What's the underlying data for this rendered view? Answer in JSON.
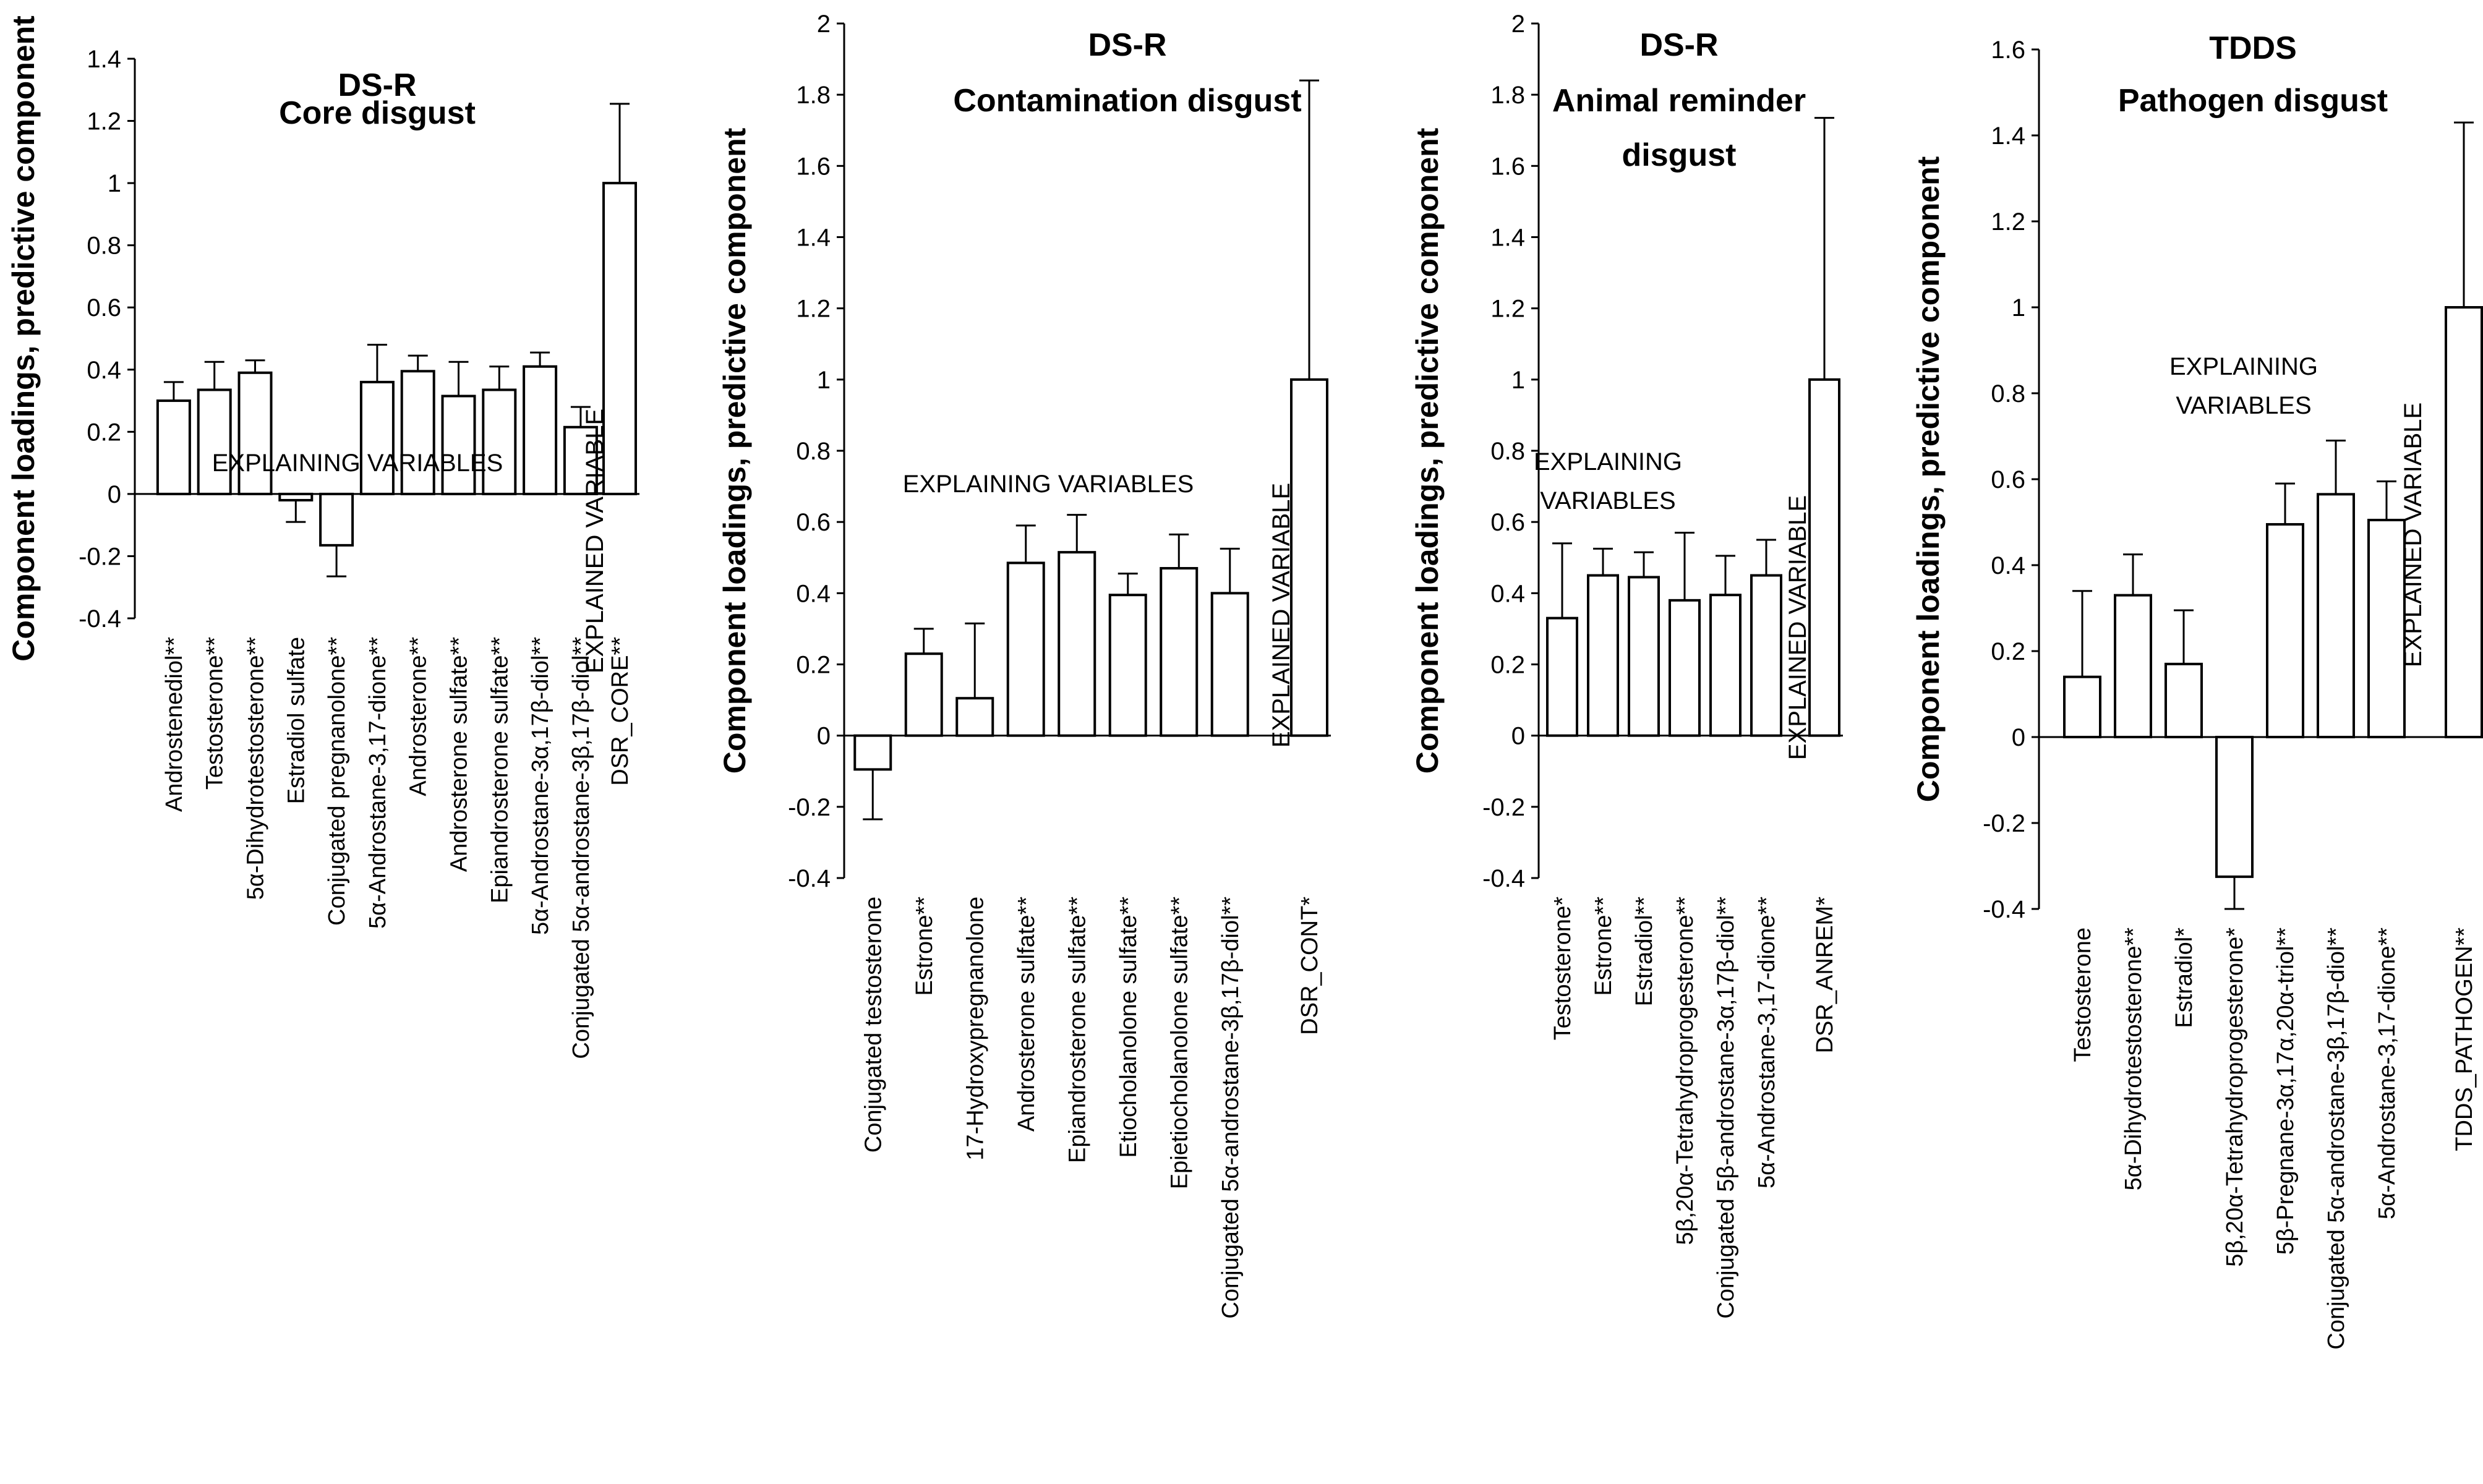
{
  "chart_data": [
    {
      "type": "bar",
      "title": [
        "DS-R",
        "Core disgust"
      ],
      "ylabel": "Component loadings, predictive component",
      "ylim": [
        -0.4,
        1.4
      ],
      "yticks": [
        -0.4,
        -0.2,
        0,
        0.2,
        0.4,
        0.6,
        0.8,
        1,
        1.2,
        1.4
      ],
      "ytick_labels": [
        "-0.4",
        "-0.2",
        "0",
        "0.2",
        "0.4",
        "0.6",
        "0.8",
        "1",
        "1.2",
        "1.4"
      ],
      "categories": [
        "Androstenediol**",
        "Testosterone**",
        "5α-Dihydrotestosterone**",
        "Estradiol sulfate",
        "Conjugated pregnanolone**",
        "5α-Androstane-3,17-dione**",
        "Androsterone**",
        "Androsterone sulfate**",
        "Epiandrosterone  sulfate**",
        "5α-Androstane-3α,17β-diol**",
        "Conjugated 5α-androstane-3β,17β-diol**",
        "DSR_CORE**"
      ],
      "values": [
        0.3,
        0.335,
        0.39,
        -0.02,
        -0.165,
        0.36,
        0.395,
        0.315,
        0.335,
        0.41,
        0.215,
        1.0
      ],
      "errors": [
        0.06,
        0.09,
        0.04,
        0.07,
        0.1,
        0.12,
        0.05,
        0.11,
        0.075,
        0.045,
        0.065,
        0.255
      ],
      "annotations": [
        {
          "text": [
            "EXPLAINING VARIABLES"
          ],
          "orientation": "horizontal"
        },
        {
          "text": [
            "EXPLAINED VARIABLE"
          ],
          "orientation": "vertical"
        }
      ]
    },
    {
      "type": "bar",
      "title": [
        "DS-R",
        "Contamination disgust"
      ],
      "ylabel": "Component loadings, predictive component",
      "ylim": [
        -0.4,
        2.0
      ],
      "yticks": [
        -0.4,
        -0.2,
        0,
        0.2,
        0.4,
        0.6,
        0.8,
        1,
        1.2,
        1.4,
        1.6,
        1.8,
        2
      ],
      "ytick_labels": [
        "-0.4",
        "-0.2",
        "0",
        "0.2",
        "0.4",
        "0.6",
        "0.8",
        "1",
        "1.2",
        "1.4",
        "1.6",
        "1.8",
        "2"
      ],
      "categories": [
        "Conjugated testosterone",
        "Estrone**",
        "17-Hydroxypregnanolone",
        "Androsterone sulfate**",
        "Epiandrosterone  sulfate**",
        "Etiocholanolone sulfate**",
        "Epietiocholanolone sulfate**",
        "Conjugated 5α-androstane-3β,17β-diol**",
        "DSR_CONT*"
      ],
      "values": [
        -0.095,
        0.23,
        0.105,
        0.485,
        0.515,
        0.395,
        0.47,
        0.4,
        1.0
      ],
      "errors": [
        0.14,
        0.07,
        0.21,
        0.105,
        0.105,
        0.06,
        0.095,
        0.125,
        0.84
      ],
      "annotations": [
        {
          "text": [
            "EXPLAINING VARIABLES"
          ],
          "orientation": "horizontal"
        },
        {
          "text": [
            "EXPLAINED VARIABLE"
          ],
          "orientation": "vertical"
        }
      ]
    },
    {
      "type": "bar",
      "title": [
        "DS-R",
        "Animal reminder",
        "disgust"
      ],
      "ylabel": "Component loadings, predictive component",
      "ylim": [
        -0.4,
        2.0
      ],
      "yticks": [
        -0.4,
        -0.2,
        0,
        0.2,
        0.4,
        0.6,
        0.8,
        1,
        1.2,
        1.4,
        1.6,
        1.8,
        2
      ],
      "ytick_labels": [
        "-0.4",
        "-0.2",
        "0",
        "0.2",
        "0.4",
        "0.6",
        "0.8",
        "1",
        "1.2",
        "1.4",
        "1.6",
        "1.8",
        "2"
      ],
      "categories": [
        "Testosterone*",
        "Estrone**",
        "Estradiol**",
        "5β,20α-Tetrahydroprogesterone**",
        "Conjugated 5β-androstane-3α,17β-diol**",
        "5α-Androstane-3,17-dione**",
        "DSR_ANREM*"
      ],
      "values": [
        0.33,
        0.45,
        0.445,
        0.38,
        0.395,
        0.45,
        1.0
      ],
      "errors": [
        0.21,
        0.075,
        0.07,
        0.19,
        0.11,
        0.1,
        0.735
      ],
      "annotations": [
        {
          "text": [
            "EXPLAINING",
            "VARIABLES"
          ],
          "orientation": "horizontal"
        },
        {
          "text": [
            "EXPLAINED VARIABLE"
          ],
          "orientation": "vertical"
        }
      ]
    },
    {
      "type": "bar",
      "title": [
        "TDDS",
        "Pathogen disgust"
      ],
      "ylabel": "Component loadings, predictive component",
      "ylim": [
        -0.4,
        1.6
      ],
      "yticks": [
        -0.4,
        -0.2,
        0,
        0.2,
        0.4,
        0.6,
        0.8,
        1,
        1.2,
        1.4,
        1.6
      ],
      "ytick_labels": [
        "-0.4",
        "-0.2",
        "0",
        "0.2",
        "0.4",
        "0.6",
        "0.8",
        "1",
        "1.2",
        "1.4",
        "1.6"
      ],
      "categories": [
        "Testosterone",
        "5α-Dihydrotestosterone**",
        "Estradiol*",
        "5β,20α-Tetrahydroprogesterone*",
        "5β-Pregnane-3α,17α,20α-triol**",
        "Conjugated 5α-androstane-3β,17β-diol**",
        "5α-Androstane-3,17-dione**",
        "TDDS_PATHOGEN**"
      ],
      "values": [
        0.14,
        0.33,
        0.17,
        -0.325,
        0.495,
        0.565,
        0.505,
        1.0
      ],
      "errors": [
        0.2,
        0.095,
        0.125,
        0.075,
        0.095,
        0.125,
        0.09,
        0.43
      ],
      "annotations": [
        {
          "text": [
            "EXPLAINING",
            "VARIABLES"
          ],
          "orientation": "horizontal"
        },
        {
          "text": [
            "EXPLAINED VARIABLE"
          ],
          "orientation": "vertical"
        }
      ]
    }
  ]
}
